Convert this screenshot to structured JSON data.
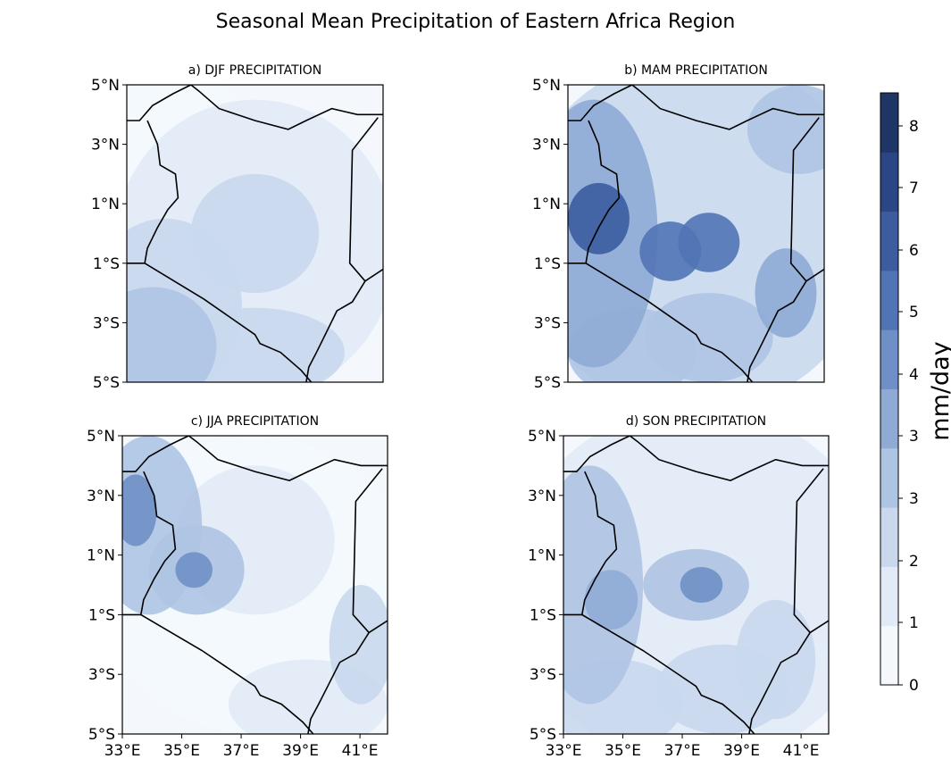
{
  "title": "Seasonal Mean Precipitation of Eastern Africa Region",
  "panels": [
    {
      "label": "a) DJF PRECIPITATION",
      "season": "DJF"
    },
    {
      "label": "b) MAM PRECIPITATION",
      "season": "MAM"
    },
    {
      "label": "c) JJA PRECIPITATION",
      "season": "JJA"
    },
    {
      "label": "d) SON PRECIPITATION",
      "season": "SON"
    }
  ],
  "lat_ticks": [
    "5°N",
    "3°N",
    "1°N",
    "1°S",
    "3°S",
    "5°S"
  ],
  "lon_ticks": [
    "33°E",
    "35°E",
    "37°E",
    "39°E",
    "41°E"
  ],
  "colorbar": {
    "label": "mm/day",
    "ticks": [
      "0",
      "1",
      "2",
      "3",
      "3",
      "4",
      "5",
      "6",
      "7",
      "8"
    ],
    "colors": [
      "#f4f8fd",
      "#e1eaf6",
      "#c9d8ed",
      "#aec4e3",
      "#8fabd5",
      "#6f90c6",
      "#5174b5",
      "#3b5da0",
      "#2a4685",
      "#1e3566"
    ]
  },
  "chart_data": [
    {
      "type": "heatmap",
      "title": "a) DJF PRECIPITATION",
      "units": "mm/day",
      "range": [
        0,
        8.5
      ],
      "lat_range": [
        "5°S",
        "5°N"
      ],
      "lon_range": [
        "33°E",
        "42°E"
      ]
    },
    {
      "type": "heatmap",
      "title": "b) MAM PRECIPITATION",
      "units": "mm/day",
      "range": [
        0,
        8.5
      ],
      "lat_range": [
        "5°S",
        "5°N"
      ],
      "lon_range": [
        "33°E",
        "42°E"
      ]
    },
    {
      "type": "heatmap",
      "title": "c) JJA PRECIPITATION",
      "units": "mm/day",
      "range": [
        0,
        8.5
      ],
      "lat_range": [
        "5°S",
        "5°N"
      ],
      "lon_range": [
        "33°E",
        "42°E"
      ]
    },
    {
      "type": "heatmap",
      "title": "d) SON PRECIPITATION",
      "units": "mm/day",
      "range": [
        0,
        8.5
      ],
      "lat_range": [
        "5°S",
        "5°N"
      ],
      "lon_range": [
        "33°E",
        "42°E"
      ]
    }
  ]
}
